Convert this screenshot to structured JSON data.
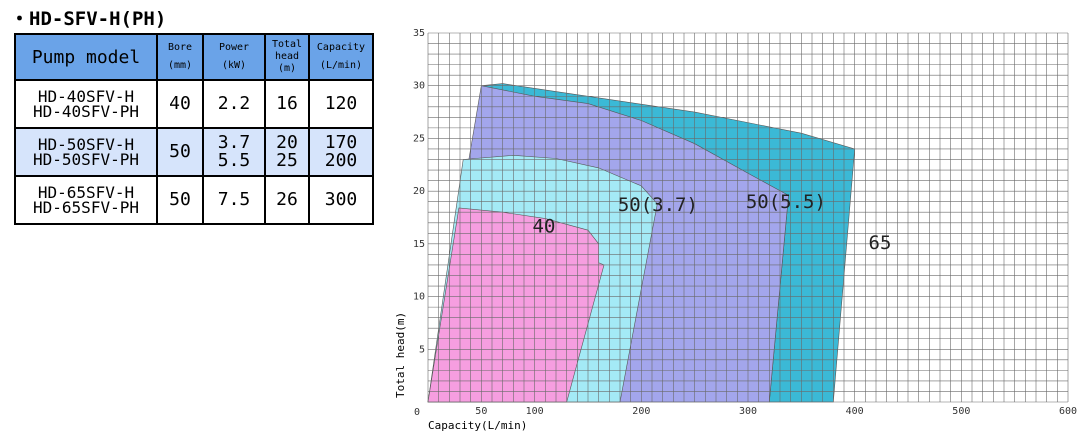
{
  "heading": "・HD-SFV-H(PH)",
  "table": {
    "headers": {
      "model": "Pump model",
      "bore": "Bore",
      "bore_unit": "(mm)",
      "power": "Power",
      "power_unit": "(kW)",
      "head": "Total head",
      "head_unit": "(m)",
      "capacity": "Capacity",
      "capacity_unit": "(L/min)"
    },
    "rows": [
      {
        "model_1": "HD-40SFV-H",
        "model_2": "HD-40SFV-PH",
        "bore": "40",
        "power_1": "2.2",
        "power_2": "",
        "head_1": "16",
        "head_2": "",
        "capacity_1": "120",
        "capacity_2": ""
      },
      {
        "model_1": "HD-50SFV-H",
        "model_2": "HD-50SFV-PH",
        "bore": "50",
        "power_1": "3.7",
        "power_2": "5.5",
        "head_1": "20",
        "head_2": "25",
        "capacity_1": "170",
        "capacity_2": "200"
      },
      {
        "model_1": "HD-65SFV-H",
        "model_2": "HD-65SFV-PH",
        "bore": "50",
        "power_1": "7.5",
        "power_2": "",
        "head_1": "26",
        "head_2": "",
        "capacity_1": "300",
        "capacity_2": ""
      }
    ]
  },
  "colors": {
    "header_bg": "#6aa3e8",
    "row_highlight": "#d6e4fb"
  },
  "chart_data": {
    "type": "area",
    "xlabel": "Capacity(L/min)",
    "ylabel": "Total head(m)",
    "xlim": [
      0,
      600
    ],
    "ylim": [
      0,
      35
    ],
    "x_ticks": [
      "0",
      "50",
      "100",
      "200",
      "300",
      "400",
      "500",
      "600"
    ],
    "x_tick_values": [
      0,
      50,
      100,
      200,
      300,
      400,
      500,
      600
    ],
    "y_ticks": [
      "5",
      "10",
      "15",
      "20",
      "25",
      "30",
      "35"
    ],
    "y_tick_values": [
      5,
      10,
      15,
      20,
      25,
      30,
      35
    ],
    "grid": true,
    "regions": [
      {
        "name": "65",
        "color": "#3bb9d6",
        "points": [
          [
            50,
            30
          ],
          [
            70,
            30.2
          ],
          [
            150,
            29
          ],
          [
            250,
            27.5
          ],
          [
            350,
            25.5
          ],
          [
            400,
            24
          ],
          [
            380,
            0
          ],
          [
            320,
            0
          ],
          [
            338,
            19.6
          ]
        ],
        "label_at": [
          413,
          14.5
        ]
      },
      {
        "name": "50(5.5)",
        "color": "#a3a6ec",
        "points": [
          [
            0,
            0
          ],
          [
            50,
            30
          ],
          [
            100,
            29
          ],
          [
            150,
            28.3
          ],
          [
            200,
            26.7
          ],
          [
            250,
            24.5
          ],
          [
            300,
            21.7
          ],
          [
            338,
            19.6
          ],
          [
            320,
            0
          ]
        ],
        "label_at": [
          298,
          18.4
        ]
      },
      {
        "name": "50(3.7)",
        "color": "#a4eaf6",
        "points": [
          [
            0,
            0
          ],
          [
            33,
            23
          ],
          [
            80,
            23.4
          ],
          [
            120,
            23.1
          ],
          [
            160,
            22.2
          ],
          [
            200,
            20.5
          ],
          [
            215,
            18.8
          ],
          [
            180,
            0
          ]
        ],
        "label_at": [
          178,
          18.1
        ]
      },
      {
        "name": "40",
        "color": "#f69ee0",
        "points": [
          [
            0,
            0
          ],
          [
            29,
            18.4
          ],
          [
            70,
            18
          ],
          [
            110,
            17.4
          ],
          [
            150,
            16.3
          ],
          [
            160,
            15
          ],
          [
            160,
            13.2
          ],
          [
            165,
            13
          ],
          [
            130,
            0
          ]
        ],
        "label_at": [
          98,
          16.1
        ]
      }
    ]
  }
}
